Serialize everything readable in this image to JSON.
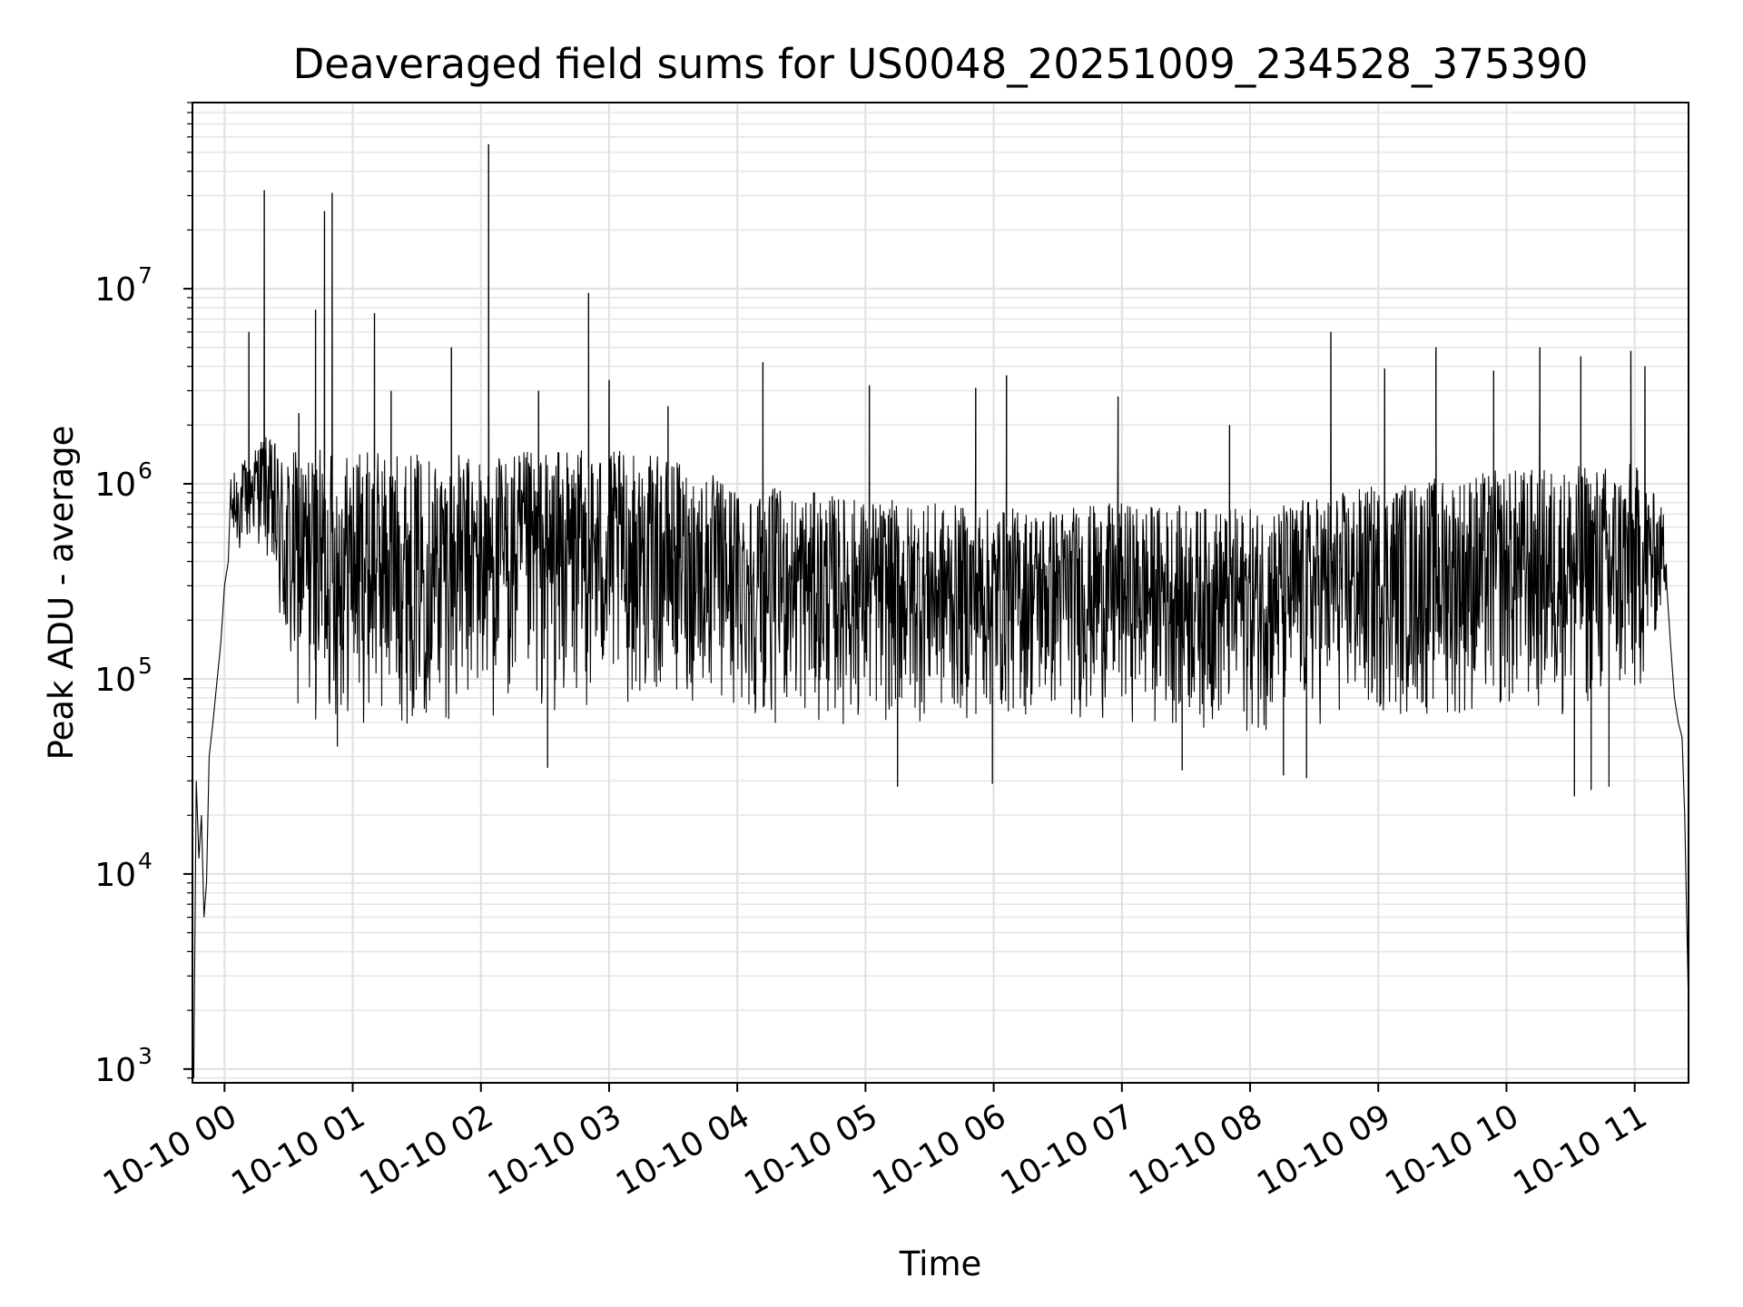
{
  "chart_data": {
    "type": "line",
    "title": "Deaveraged field sums for US0048_20251009_234528_375390",
    "xlabel": "Time",
    "ylabel": "Peak ADU - average",
    "yscale": "log",
    "ylim": [
      850,
      90000000
    ],
    "xlim_hours": [
      -0.25,
      11.42
    ],
    "grid": true,
    "line_color": "#000000",
    "x_ticks": [
      {
        "hour": 0,
        "label": "10-10 00"
      },
      {
        "hour": 1,
        "label": "10-10 01"
      },
      {
        "hour": 2,
        "label": "10-10 02"
      },
      {
        "hour": 3,
        "label": "10-10 03"
      },
      {
        "hour": 4,
        "label": "10-10 04"
      },
      {
        "hour": 5,
        "label": "10-10 05"
      },
      {
        "hour": 6,
        "label": "10-10 06"
      },
      {
        "hour": 7,
        "label": "10-10 07"
      },
      {
        "hour": 8,
        "label": "10-10 08"
      },
      {
        "hour": 9,
        "label": "10-10 09"
      },
      {
        "hour": 10,
        "label": "10-10 10"
      },
      {
        "hour": 11,
        "label": "10-10 11"
      }
    ],
    "y_ticks": [
      {
        "value": 1000,
        "base": "10",
        "exp": "3"
      },
      {
        "value": 10000,
        "base": "10",
        "exp": "4"
      },
      {
        "value": 100000,
        "base": "10",
        "exp": "5"
      },
      {
        "value": 1000000,
        "base": "10",
        "exp": "6"
      },
      {
        "value": 10000000,
        "base": "10",
        "exp": "7"
      }
    ],
    "envelope": [
      {
        "hour": 0.05,
        "low": 380000,
        "high": 1100000
      },
      {
        "hour": 0.3,
        "low": 500000,
        "high": 1800000
      },
      {
        "hour": 0.5,
        "low": 60000,
        "high": 1500000
      },
      {
        "hour": 1.0,
        "low": 55000,
        "high": 1500000
      },
      {
        "hour": 2.0,
        "low": 60000,
        "high": 1400000
      },
      {
        "hour": 2.5,
        "low": 60000,
        "high": 1500000
      },
      {
        "hour": 3.0,
        "low": 70000,
        "high": 1500000
      },
      {
        "hour": 3.5,
        "low": 75000,
        "high": 1350000
      },
      {
        "hour": 4.0,
        "low": 60000,
        "high": 1000000
      },
      {
        "hour": 5.0,
        "low": 55000,
        "high": 850000
      },
      {
        "hour": 6.0,
        "low": 60000,
        "high": 750000
      },
      {
        "hour": 7.0,
        "low": 60000,
        "high": 800000
      },
      {
        "hour": 8.0,
        "low": 50000,
        "high": 750000
      },
      {
        "hour": 9.0,
        "low": 60000,
        "high": 1000000
      },
      {
        "hour": 10.0,
        "low": 60000,
        "high": 1200000
      },
      {
        "hour": 11.0,
        "low": 60000,
        "high": 1300000
      },
      {
        "hour": 11.25,
        "low": 250000,
        "high": 700000
      }
    ],
    "ramp_start": [
      {
        "hour": -0.24,
        "value": 900
      },
      {
        "hour": -0.22,
        "value": 30000
      },
      {
        "hour": -0.2,
        "value": 12000
      },
      {
        "hour": -0.18,
        "value": 20000
      },
      {
        "hour": -0.16,
        "value": 6000
      },
      {
        "hour": -0.14,
        "value": 9000
      },
      {
        "hour": -0.12,
        "value": 40000
      },
      {
        "hour": -0.09,
        "value": 60000
      },
      {
        "hour": -0.06,
        "value": 95000
      },
      {
        "hour": -0.03,
        "value": 150000
      },
      {
        "hour": 0.0,
        "value": 300000
      },
      {
        "hour": 0.03,
        "value": 400000
      }
    ],
    "ramp_end": [
      {
        "hour": 11.25,
        "value": 300000
      },
      {
        "hour": 11.28,
        "value": 150000
      },
      {
        "hour": 11.31,
        "value": 80000
      },
      {
        "hour": 11.34,
        "value": 60000
      },
      {
        "hour": 11.37,
        "value": 50000
      },
      {
        "hour": 11.39,
        "value": 20000
      },
      {
        "hour": 11.42,
        "value": 2000
      }
    ],
    "spikes": [
      {
        "hour": 0.19,
        "value": 6000000
      },
      {
        "hour": 0.31,
        "value": 32000000
      },
      {
        "hour": 0.58,
        "value": 2300000
      },
      {
        "hour": 0.71,
        "value": 7800000
      },
      {
        "hour": 0.78,
        "value": 25000000
      },
      {
        "hour": 0.84,
        "value": 31000000
      },
      {
        "hour": 1.17,
        "value": 7500000
      },
      {
        "hour": 1.3,
        "value": 3000000
      },
      {
        "hour": 1.77,
        "value": 5000000
      },
      {
        "hour": 2.06,
        "value": 55000000
      },
      {
        "hour": 2.45,
        "value": 3000000
      },
      {
        "hour": 2.84,
        "value": 9500000
      },
      {
        "hour": 3.0,
        "value": 3400000
      },
      {
        "hour": 3.46,
        "value": 2500000
      },
      {
        "hour": 4.2,
        "value": 4200000
      },
      {
        "hour": 5.03,
        "value": 3200000
      },
      {
        "hour": 5.86,
        "value": 3100000
      },
      {
        "hour": 6.1,
        "value": 3600000
      },
      {
        "hour": 6.97,
        "value": 2800000
      },
      {
        "hour": 7.84,
        "value": 2000000
      },
      {
        "hour": 8.63,
        "value": 6000000
      },
      {
        "hour": 9.05,
        "value": 3900000
      },
      {
        "hour": 9.45,
        "value": 5000000
      },
      {
        "hour": 9.9,
        "value": 3800000
      },
      {
        "hour": 10.26,
        "value": 5000000
      },
      {
        "hour": 10.58,
        "value": 4500000
      },
      {
        "hour": 10.97,
        "value": 4800000
      },
      {
        "hour": 11.08,
        "value": 4000000
      }
    ],
    "dips": [
      {
        "hour": 0.88,
        "value": 45000
      },
      {
        "hour": 2.52,
        "value": 35000
      },
      {
        "hour": 5.25,
        "value": 28000
      },
      {
        "hour": 5.99,
        "value": 29000
      },
      {
        "hour": 7.47,
        "value": 34000
      },
      {
        "hour": 8.26,
        "value": 32000
      },
      {
        "hour": 8.44,
        "value": 31000
      },
      {
        "hour": 10.53,
        "value": 25000
      },
      {
        "hour": 10.66,
        "value": 27000
      },
      {
        "hour": 10.8,
        "value": 28000
      }
    ]
  }
}
